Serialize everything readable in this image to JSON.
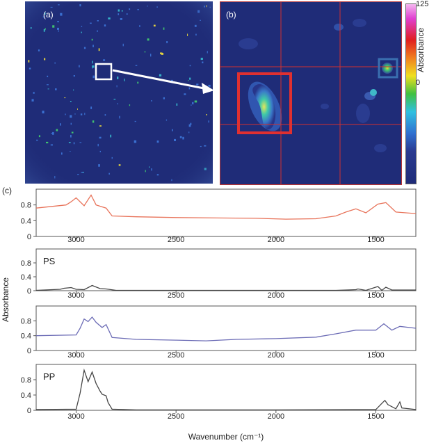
{
  "panels": {
    "a_label": "(a)",
    "b_label": "(b)",
    "c_label": "(c)"
  },
  "colorbar": {
    "max_label": "125",
    "min_label": "0",
    "title": "Absorbance"
  },
  "colors": {
    "image_background": "#1f2c78",
    "sample_spectrum": "#e8735a",
    "reference_spectrum": "#444444",
    "blue_spectrum": "#6b6bb5",
    "highlight_red": "#e03030",
    "highlight_blue": "#3a6fb0"
  },
  "chart_data": [
    {
      "type": "line",
      "panel": "c-1",
      "series": [],
      "x": [
        3200,
        3050,
        3025,
        3000,
        2960,
        2925,
        2900,
        2850,
        2820,
        2700,
        2500,
        2300,
        2100,
        1950,
        1800,
        1700,
        1650,
        1600,
        1550,
        1490,
        1450,
        1400,
        1300
      ],
      "values": [
        0.72,
        0.8,
        0.88,
        0.98,
        0.78,
        1.05,
        0.8,
        0.72,
        0.52,
        0.5,
        0.48,
        0.47,
        0.46,
        0.44,
        0.45,
        0.52,
        0.62,
        0.7,
        0.6,
        0.82,
        0.86,
        0.62,
        0.58
      ],
      "xlim": [
        3200,
        1300
      ],
      "ylim": [
        0,
        1.2
      ],
      "yticks": [
        "0",
        "0.4",
        "0.8"
      ],
      "xticks": [
        "3000",
        "2500",
        "2000",
        "1500"
      ]
    },
    {
      "type": "line",
      "panel": "c-2",
      "label": "PS",
      "x": [
        3200,
        3080,
        3060,
        3025,
        3000,
        2960,
        2920,
        2880,
        2850,
        2800,
        2500,
        2000,
        1700,
        1600,
        1590,
        1550,
        1490,
        1470,
        1450,
        1420,
        1300
      ],
      "values": [
        0.01,
        0.04,
        0.07,
        0.09,
        0.04,
        0.03,
        0.15,
        0.06,
        0.05,
        0.01,
        0.01,
        0.01,
        0.01,
        0.03,
        0.05,
        0.01,
        0.12,
        0.01,
        0.1,
        0.02,
        0.02
      ],
      "xlim": [
        3200,
        1300
      ],
      "ylim": [
        0,
        1.2
      ],
      "yticks": [
        "0",
        "0.4",
        "0.8"
      ],
      "xticks": [
        "3000",
        "2500",
        "2000",
        "1500"
      ]
    },
    {
      "type": "line",
      "panel": "c-3",
      "x": [
        3200,
        3000,
        2980,
        2960,
        2940,
        2920,
        2900,
        2870,
        2850,
        2820,
        2700,
        2500,
        2350,
        2200,
        2000,
        1800,
        1700,
        1600,
        1500,
        1460,
        1420,
        1380,
        1300
      ],
      "values": [
        0.4,
        0.42,
        0.6,
        0.85,
        0.78,
        0.9,
        0.76,
        0.62,
        0.7,
        0.35,
        0.3,
        0.28,
        0.26,
        0.3,
        0.32,
        0.36,
        0.45,
        0.55,
        0.55,
        0.72,
        0.55,
        0.65,
        0.6
      ],
      "xlim": [
        3200,
        1300
      ],
      "ylim": [
        0,
        1.2
      ],
      "yticks": [
        "0",
        "0.4",
        "0.8"
      ],
      "xticks": [
        "3000",
        "2500",
        "2000",
        "1500"
      ]
    },
    {
      "type": "line",
      "panel": "c-4",
      "label": "PP",
      "x": [
        3200,
        3000,
        2980,
        2960,
        2940,
        2920,
        2900,
        2880,
        2870,
        2850,
        2840,
        2820,
        2700,
        2500,
        2000,
        1500,
        1470,
        1455,
        1440,
        1400,
        1380,
        1370,
        1300
      ],
      "values": [
        0.02,
        0.03,
        0.45,
        1.05,
        0.75,
        1.0,
        0.7,
        0.5,
        0.42,
        0.38,
        0.2,
        0.03,
        0.01,
        0.01,
        0.01,
        0.02,
        0.18,
        0.26,
        0.15,
        0.04,
        0.22,
        0.06,
        0.02
      ],
      "xlim": [
        3200,
        1300
      ],
      "ylim": [
        0,
        1.2
      ],
      "yticks": [
        "0",
        "0.4",
        "0.8"
      ],
      "xticks": [
        "3000",
        "2500",
        "2000",
        "1500"
      ]
    }
  ],
  "axes": {
    "ylabel": "Absorbance",
    "xlabel": "Wavenumber (cm⁻¹)"
  }
}
